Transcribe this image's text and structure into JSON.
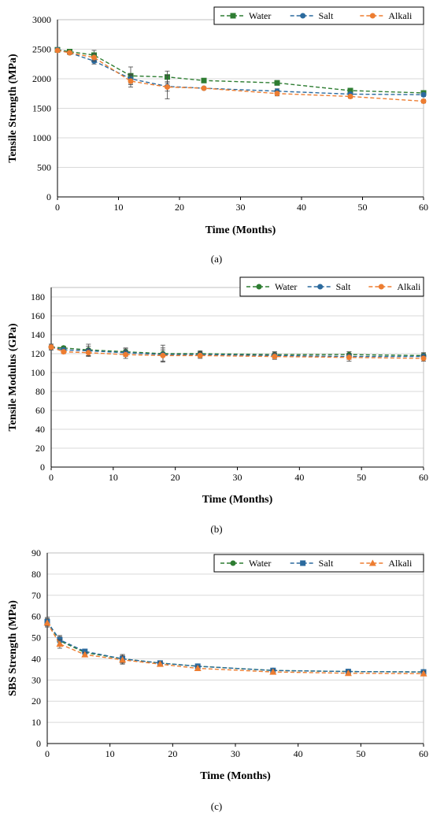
{
  "colors": {
    "water": "#2e7d32",
    "salt": "#2b6a9e",
    "alkali": "#ed7d31",
    "grid": "#d9d9d9",
    "axis": "#000000"
  },
  "chart_data": [
    {
      "panel_label": "(a)",
      "type": "line",
      "xlabel": "Time (Months)",
      "ylabel": "Tensile Strength (MPa)",
      "xlim": [
        0,
        60
      ],
      "ylim": [
        0,
        3000
      ],
      "xticks": [
        0,
        10,
        20,
        30,
        40,
        50,
        60
      ],
      "yticks": [
        0,
        500,
        1000,
        1500,
        2000,
        2500,
        3000
      ],
      "grid": true,
      "legend_position": "top-right",
      "series": [
        {
          "name": "Water",
          "marker": "square",
          "color_key": "water",
          "x": [
            0,
            2,
            6,
            12,
            18,
            24,
            36,
            48,
            60
          ],
          "y": [
            2490,
            2460,
            2400,
            2050,
            2030,
            1970,
            1930,
            1800,
            1760
          ],
          "err": [
            40,
            30,
            80,
            150,
            100,
            20,
            40,
            30,
            30
          ]
        },
        {
          "name": "Salt",
          "marker": "circle",
          "color_key": "salt",
          "x": [
            0,
            2,
            6,
            12,
            18,
            24,
            36,
            48,
            60
          ],
          "y": [
            2490,
            2440,
            2300,
            2000,
            1870,
            1840,
            1790,
            1740,
            1730
          ],
          "err": [
            30,
            30,
            50,
            80,
            80,
            20,
            40,
            30,
            30
          ]
        },
        {
          "name": "Alkali",
          "marker": "circle",
          "color_key": "alkali",
          "x": [
            0,
            2,
            6,
            12,
            18,
            24,
            36,
            48,
            60
          ],
          "y": [
            2480,
            2440,
            2360,
            1960,
            1860,
            1840,
            1750,
            1700,
            1620
          ],
          "err": [
            30,
            30,
            60,
            100,
            200,
            20,
            40,
            30,
            30
          ]
        }
      ]
    },
    {
      "panel_label": "(b)",
      "type": "line",
      "xlabel": "Time (Months)",
      "ylabel": "Tensile Modulus (GPa)",
      "xlim": [
        0,
        60
      ],
      "ylim": [
        0,
        190
      ],
      "xticks": [
        0,
        10,
        20,
        30,
        40,
        50,
        60
      ],
      "yticks": [
        0,
        20,
        40,
        60,
        80,
        100,
        120,
        140,
        160,
        180
      ],
      "grid": true,
      "legend_position": "top-right",
      "series": [
        {
          "name": "Water",
          "marker": "circle",
          "color_key": "water",
          "x": [
            0,
            2,
            6,
            12,
            18,
            24,
            36,
            48,
            60
          ],
          "y": [
            127,
            126,
            124,
            122,
            120,
            120,
            119,
            119,
            118
          ],
          "err": [
            3,
            2,
            6,
            4,
            9,
            3,
            3,
            3,
            3
          ]
        },
        {
          "name": "Salt",
          "marker": "circle",
          "color_key": "salt",
          "x": [
            0,
            2,
            6,
            12,
            18,
            24,
            36,
            48,
            60
          ],
          "y": [
            127,
            124,
            123,
            121,
            119,
            119,
            118,
            117,
            117
          ],
          "err": [
            3,
            2,
            5,
            4,
            7,
            3,
            3,
            3,
            3
          ]
        },
        {
          "name": "Alkali",
          "marker": "circle",
          "color_key": "alkali",
          "x": [
            0,
            2,
            6,
            12,
            18,
            24,
            36,
            48,
            60
          ],
          "y": [
            127,
            122,
            121,
            119,
            118,
            118,
            117,
            116,
            115
          ],
          "err": [
            3,
            2,
            4,
            4,
            6,
            3,
            3,
            4,
            3
          ]
        }
      ]
    },
    {
      "panel_label": "(c)",
      "type": "line",
      "xlabel": "Time (Months)",
      "ylabel": "SBS Strength (MPa)",
      "xlim": [
        0,
        60
      ],
      "ylim": [
        0,
        90
      ],
      "xticks": [
        0,
        10,
        20,
        30,
        40,
        50,
        60
      ],
      "yticks": [
        0,
        10,
        20,
        30,
        40,
        50,
        60,
        70,
        80,
        90
      ],
      "grid": true,
      "legend_position": "top-right",
      "series": [
        {
          "name": "Water",
          "marker": "circle",
          "color_key": "water",
          "x": [
            0,
            2,
            6,
            12,
            18,
            24,
            36,
            48,
            60
          ],
          "y": [
            57.5,
            48.5,
            43,
            40,
            38,
            36.5,
            34.5,
            34,
            33.8
          ],
          "err": [
            2,
            2,
            1,
            2,
            1,
            1,
            1,
            1,
            1
          ]
        },
        {
          "name": "Salt",
          "marker": "square",
          "color_key": "salt",
          "x": [
            0,
            2,
            6,
            12,
            18,
            24,
            36,
            48,
            60
          ],
          "y": [
            57.5,
            49,
            43.5,
            40,
            38,
            36.5,
            34.5,
            34,
            33.8
          ],
          "err": [
            2,
            2,
            1,
            2,
            1,
            1,
            1,
            1,
            1
          ]
        },
        {
          "name": "Alkali",
          "marker": "triangle",
          "color_key": "alkali",
          "x": [
            0,
            2,
            6,
            12,
            18,
            24,
            36,
            48,
            60
          ],
          "y": [
            57,
            47,
            42,
            39.5,
            37.5,
            35.5,
            33.8,
            33.2,
            33
          ],
          "err": [
            2,
            2,
            1,
            2,
            1,
            1,
            1,
            1,
            1
          ]
        }
      ]
    }
  ]
}
